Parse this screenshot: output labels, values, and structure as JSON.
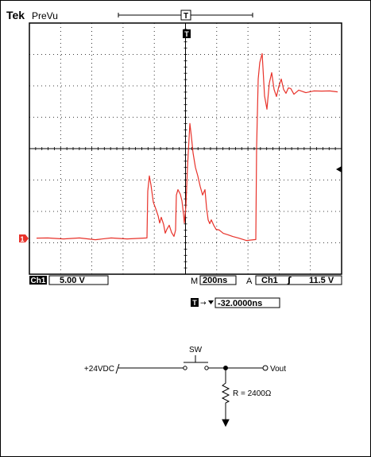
{
  "scope": {
    "brand": "Tek",
    "mode": "PreVu",
    "ch1_label": "Ch1",
    "ch1_scale": "5.00 V",
    "timebase_prefix": "M",
    "timebase": "200ns",
    "trigger_mode": "A",
    "trigger_source": "Ch1",
    "trigger_slope_symbol": "ʃ",
    "trigger_level": "11.5 V",
    "trigger_offset": "-32.0000ns",
    "trigger_marker": "T",
    "ground_marker": "1",
    "trace_color": "#e8322a",
    "highlight_color": "#e8322a"
  },
  "schematic": {
    "supply_label": "+24VDC",
    "switch_label": "SW",
    "output_label": "Vout",
    "resistor_label": "R = 2400Ω"
  }
}
